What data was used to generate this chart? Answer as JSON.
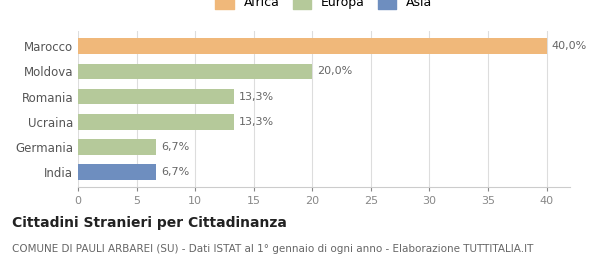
{
  "categories": [
    "India",
    "Germania",
    "Ucraina",
    "Romania",
    "Moldova",
    "Marocco"
  ],
  "values": [
    6.7,
    6.7,
    13.3,
    13.3,
    20.0,
    40.0
  ],
  "colors": [
    "#6e8ebf",
    "#b5c99a",
    "#b5c99a",
    "#b5c99a",
    "#b5c99a",
    "#f0b87a"
  ],
  "labels": [
    "6,7%",
    "6,7%",
    "13,3%",
    "13,3%",
    "20,0%",
    "40,0%"
  ],
  "legend_items": [
    {
      "label": "Africa",
      "color": "#f0b87a"
    },
    {
      "label": "Europa",
      "color": "#b5c99a"
    },
    {
      "label": "Asia",
      "color": "#6e8ebf"
    }
  ],
  "xlim": [
    0,
    42
  ],
  "xticks": [
    0,
    5,
    10,
    15,
    20,
    25,
    30,
    35,
    40
  ],
  "title": "Cittadini Stranieri per Cittadinanza",
  "subtitle": "COMUNE DI PAULI ARBAREI (SU) - Dati ISTAT al 1° gennaio di ogni anno - Elaborazione TUTTITALIA.IT",
  "title_fontsize": 10,
  "subtitle_fontsize": 7.5,
  "background_color": "#ffffff",
  "bar_height": 0.62,
  "label_fontsize": 8,
  "tick_fontsize": 8,
  "ytick_fontsize": 8.5
}
